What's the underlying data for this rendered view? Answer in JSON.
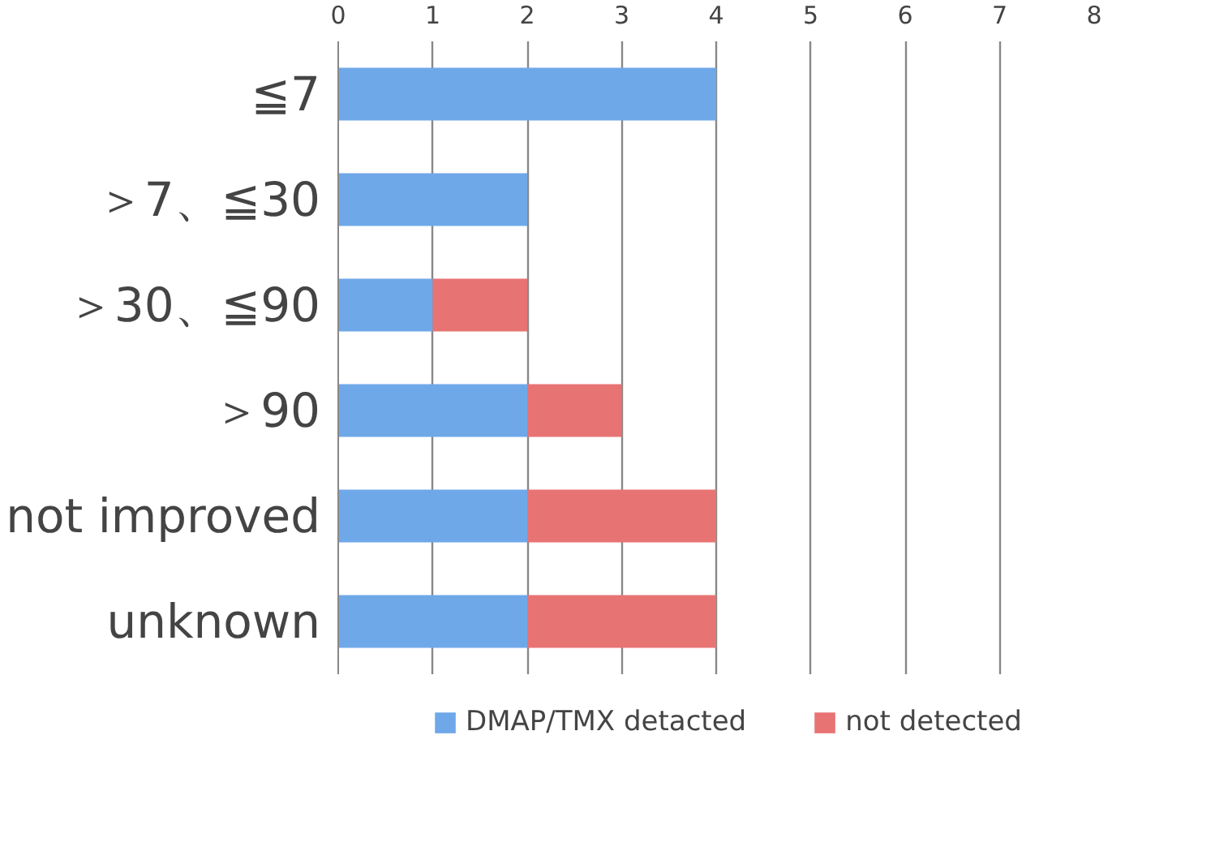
{
  "chart_data": {
    "type": "bar",
    "orientation": "horizontal",
    "stacked": true,
    "categories": [
      "≦7",
      "＞7、≦30",
      "＞30、≦90",
      "＞90",
      "not improved",
      "unknown"
    ],
    "series": [
      {
        "name": "DMAP/TMX detacted",
        "color": "#6fa8e8",
        "values": [
          4,
          2,
          1,
          2,
          2,
          2
        ]
      },
      {
        "name": "not detected",
        "color": "#e87373",
        "values": [
          null,
          null,
          1,
          1,
          2,
          2
        ]
      }
    ],
    "xlim": [
      0,
      8
    ],
    "xticks": [
      0,
      1,
      2,
      3,
      4,
      5,
      6,
      7,
      8
    ],
    "grid": "x",
    "legend": "bottom"
  }
}
